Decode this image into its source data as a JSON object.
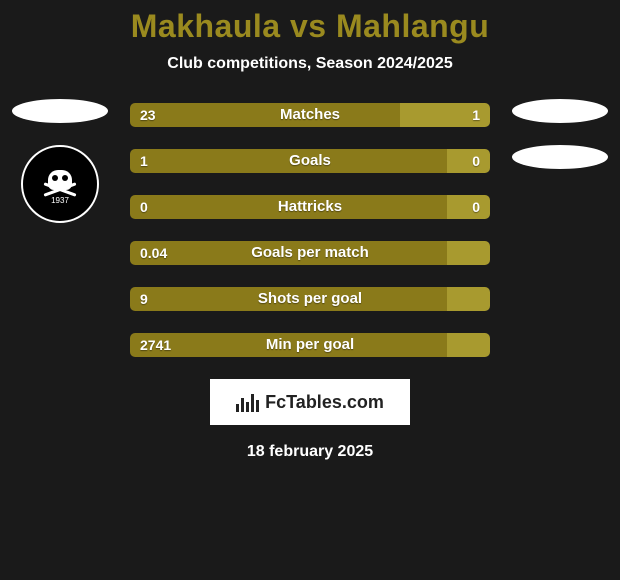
{
  "title": "Makhaula vs Mahlangu",
  "subtitle": "Club competitions, Season 2024/2025",
  "colors": {
    "left": "#8a7a1a",
    "right": "#a89a2f"
  },
  "badge_year": "1937",
  "stats": [
    {
      "label": "Matches",
      "left_val": "23",
      "right_val": "1",
      "left_pct": 75,
      "right_pct": 25
    },
    {
      "label": "Goals",
      "left_val": "1",
      "right_val": "0",
      "left_pct": 88,
      "right_pct": 12
    },
    {
      "label": "Hattricks",
      "left_val": "0",
      "right_val": "0",
      "left_pct": 88,
      "right_pct": 12
    },
    {
      "label": "Goals per match",
      "left_val": "0.04",
      "right_val": "",
      "left_pct": 88,
      "right_pct": 12
    },
    {
      "label": "Shots per goal",
      "left_val": "9",
      "right_val": "",
      "left_pct": 88,
      "right_pct": 12
    },
    {
      "label": "Min per goal",
      "left_val": "2741",
      "right_val": "",
      "left_pct": 88,
      "right_pct": 12
    }
  ],
  "branding": "FcTables.com",
  "date": "18 february 2025"
}
